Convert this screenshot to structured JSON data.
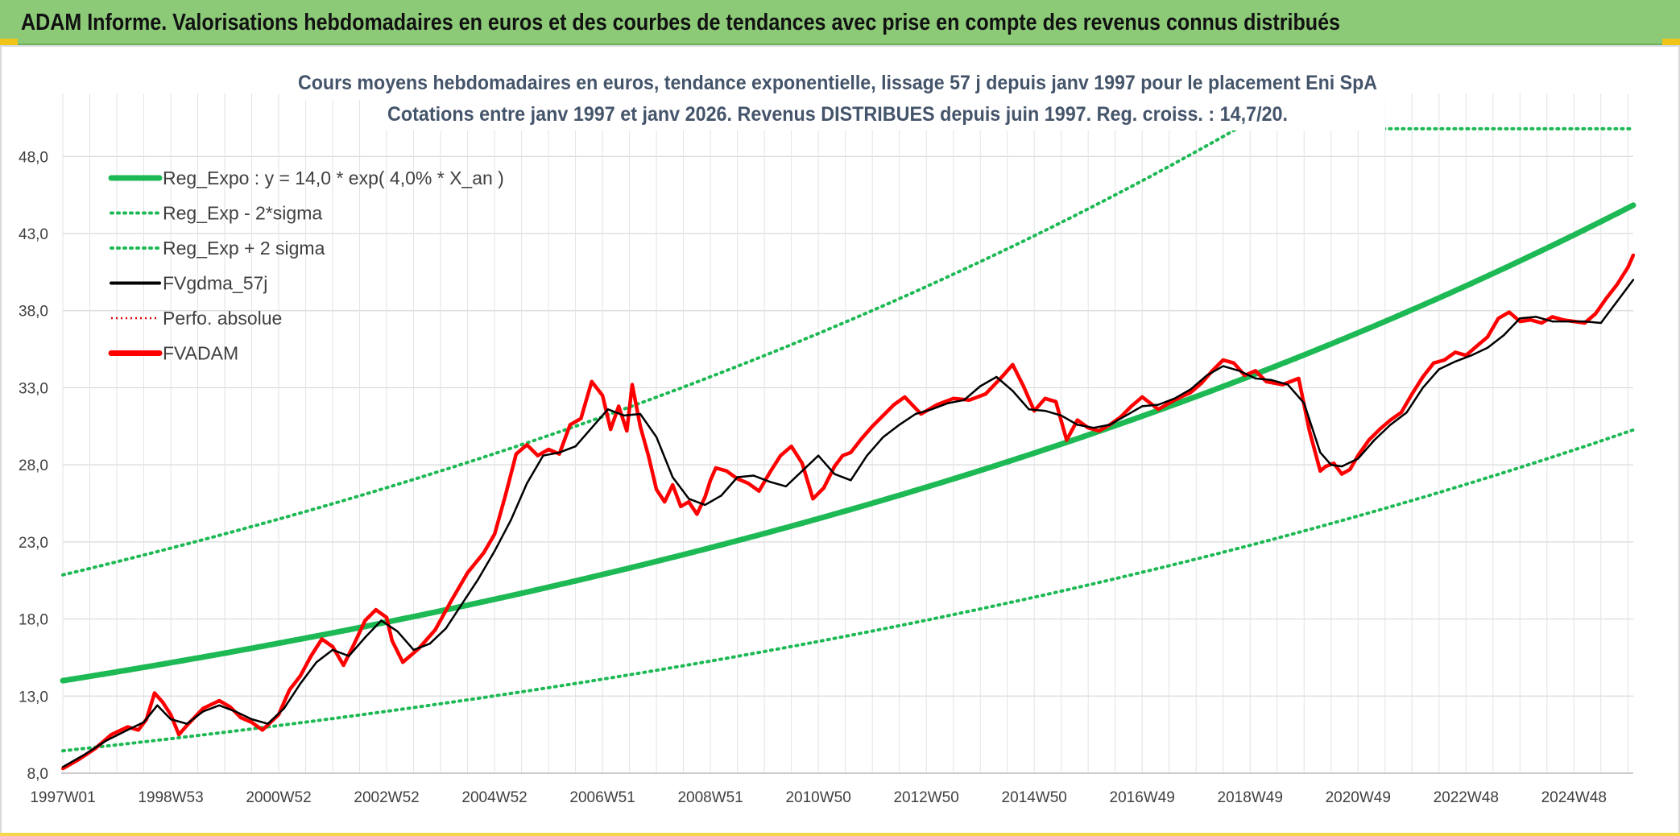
{
  "header": {
    "title": "ADAM Informe. Valorisations hebdomadaires en euros et des courbes de tendances avec prise en compte des revenus connus distribués"
  },
  "colors": {
    "header_bg": "#8cca78",
    "reg_expo": "#1db954",
    "sigma_bands": "#1db954",
    "fvgdma": "#000000",
    "perfo": "#e00000",
    "fvadam": "#ff0000"
  },
  "chart_data": {
    "type": "line",
    "title_line1": "Cours moyens hebdomadaires en euros, tendance exponentielle, lissage 57 j depuis janv 1997 pour le placement Eni SpA",
    "title_line2": "Cotations entre janv 1997 et janv 2026. Revenus DISTRIBUES depuis juin 1997. Reg. croiss. : 14,7/20.",
    "ylim": [
      8.0,
      50.0
    ],
    "y_ticks": [
      "8,0",
      "13,0",
      "18,0",
      "23,0",
      "28,0",
      "33,0",
      "38,0",
      "43,0",
      "48,0"
    ],
    "y_tick_values": [
      8,
      13,
      18,
      23,
      28,
      33,
      38,
      43,
      48
    ],
    "x_range_years": [
      1997.0,
      2026.1
    ],
    "x_ticks": [
      {
        "label": "1997W01",
        "t": 1997.0
      },
      {
        "label": "1998W53",
        "t": 1999.0
      },
      {
        "label": "2000W52",
        "t": 2001.0
      },
      {
        "label": "2002W52",
        "t": 2003.0
      },
      {
        "label": "2004W52",
        "t": 2005.0
      },
      {
        "label": "2006W51",
        "t": 2007.0
      },
      {
        "label": "2008W51",
        "t": 2009.0
      },
      {
        "label": "2010W50",
        "t": 2011.0
      },
      {
        "label": "2012W50",
        "t": 2013.0
      },
      {
        "label": "2014W50",
        "t": 2015.0
      },
      {
        "label": "2016W49",
        "t": 2017.0
      },
      {
        "label": "2018W49",
        "t": 2019.0
      },
      {
        "label": "2020W49",
        "t": 2021.0
      },
      {
        "label": "2022W48",
        "t": 2023.0
      },
      {
        "label": "2024W48",
        "t": 2025.0
      }
    ],
    "legend": [
      {
        "key": "reg_expo",
        "label": "Reg_Expo : y = 14,0 * exp( 4,0% *  X_an )",
        "style": "solid-thick",
        "color": "#1db954"
      },
      {
        "key": "reg_minus",
        "label": "Reg_Exp - 2*sigma",
        "style": "dotted",
        "color": "#1db954"
      },
      {
        "key": "reg_plus",
        "label": "Reg_Exp + 2 sigma",
        "style": "dotted",
        "color": "#1db954"
      },
      {
        "key": "fvgdma",
        "label": "FVgdma_57j",
        "style": "solid",
        "color": "#000000"
      },
      {
        "key": "perfo",
        "label": "Perfo. absolue",
        "style": "dotted-thin",
        "color": "#e00000"
      },
      {
        "key": "fvadam",
        "label": "FVADAM",
        "style": "solid-thick",
        "color": "#ff0000"
      }
    ],
    "regression": {
      "a": 14.0,
      "b": 0.04,
      "minus_factor": 0.675,
      "plus_factor": 1.49
    },
    "series": [
      {
        "name": "FVADAM",
        "t": [
          1997.0,
          1997.3,
          1997.6,
          1997.9,
          1998.2,
          1998.4,
          1998.55,
          1998.7,
          1998.85,
          1999.0,
          1999.15,
          1999.3,
          1999.6,
          1999.9,
          2000.1,
          2000.3,
          2000.5,
          2000.7,
          2001.0,
          2001.2,
          2001.4,
          2001.6,
          2001.8,
          2002.0,
          2002.2,
          2002.4,
          2002.6,
          2002.8,
          2003.0,
          2003.1,
          2003.3,
          2003.6,
          2003.9,
          2004.2,
          2004.5,
          2004.8,
          2005.0,
          2005.2,
          2005.4,
          2005.6,
          2005.8,
          2006.0,
          2006.2,
          2006.4,
          2006.6,
          2006.8,
          2007.0,
          2007.15,
          2007.3,
          2007.45,
          2007.55,
          2007.7,
          2007.85,
          2008.0,
          2008.15,
          2008.3,
          2008.45,
          2008.6,
          2008.75,
          2008.9,
          2009.0,
          2009.1,
          2009.3,
          2009.5,
          2009.7,
          2009.9,
          2010.1,
          2010.3,
          2010.5,
          2010.7,
          2010.9,
          2011.1,
          2011.3,
          2011.45,
          2011.6,
          2011.8,
          2012.0,
          2012.2,
          2012.4,
          2012.6,
          2012.9,
          2013.2,
          2013.5,
          2013.8,
          2014.1,
          2014.4,
          2014.6,
          2014.8,
          2015.0,
          2015.2,
          2015.4,
          2015.6,
          2015.8,
          2016.0,
          2016.2,
          2016.4,
          2016.6,
          2016.8,
          2017.0,
          2017.3,
          2017.6,
          2017.9,
          2018.1,
          2018.3,
          2018.5,
          2018.7,
          2018.9,
          2019.1,
          2019.3,
          2019.6,
          2019.9,
          2020.1,
          2020.3,
          2020.4,
          2020.55,
          2020.7,
          2020.85,
          2021.0,
          2021.2,
          2021.4,
          2021.6,
          2021.8,
          2022.0,
          2022.2,
          2022.4,
          2022.6,
          2022.8,
          2023.0,
          2023.2,
          2023.4,
          2023.6,
          2023.8,
          2024.0,
          2024.2,
          2024.4,
          2024.6,
          2024.8,
          2025.0,
          2025.2,
          2025.4,
          2025.6,
          2025.8,
          2026.0,
          2026.1
        ],
        "values": [
          8.3,
          8.9,
          9.6,
          10.5,
          11.0,
          10.8,
          11.5,
          13.2,
          12.6,
          11.8,
          10.5,
          11.1,
          12.2,
          12.7,
          12.3,
          11.6,
          11.3,
          10.8,
          11.8,
          13.4,
          14.3,
          15.6,
          16.7,
          16.2,
          15.0,
          16.4,
          17.9,
          18.6,
          18.1,
          16.6,
          15.2,
          16.1,
          17.3,
          19.2,
          21.0,
          22.3,
          23.5,
          26.0,
          28.7,
          29.3,
          28.6,
          29.0,
          28.7,
          30.6,
          31.0,
          33.4,
          32.5,
          30.3,
          31.8,
          30.2,
          33.2,
          30.5,
          28.6,
          26.4,
          25.6,
          26.7,
          25.3,
          25.6,
          24.8,
          25.9,
          27.0,
          27.8,
          27.6,
          27.1,
          26.8,
          26.3,
          27.5,
          28.6,
          29.2,
          28.1,
          25.8,
          26.5,
          27.9,
          28.6,
          28.8,
          29.7,
          30.5,
          31.2,
          31.9,
          32.4,
          31.3,
          31.9,
          32.3,
          32.2,
          32.6,
          33.7,
          34.5,
          33.1,
          31.5,
          32.3,
          32.1,
          29.6,
          30.9,
          30.4,
          30.2,
          30.6,
          31.1,
          31.8,
          32.4,
          31.6,
          32.2,
          32.7,
          33.3,
          34.1,
          34.8,
          34.6,
          33.8,
          34.1,
          33.4,
          33.2,
          33.6,
          30.2,
          27.6,
          27.9,
          28.1,
          27.4,
          27.7,
          28.6,
          29.6,
          30.3,
          30.9,
          31.4,
          32.6,
          33.7,
          34.6,
          34.8,
          35.3,
          35.1,
          35.7,
          36.3,
          37.5,
          37.9,
          37.3,
          37.4,
          37.2,
          37.6,
          37.4,
          37.3,
          37.2,
          37.8,
          38.8,
          39.7,
          40.8,
          41.6
        ]
      },
      {
        "name": "FVgdma_57j",
        "t": [
          1997.0,
          1997.4,
          1997.8,
          1998.2,
          1998.5,
          1998.75,
          1999.0,
          1999.3,
          1999.6,
          1999.9,
          2000.2,
          2000.5,
          2000.8,
          2001.1,
          2001.4,
          2001.7,
          2002.0,
          2002.3,
          2002.6,
          2002.9,
          2003.2,
          2003.5,
          2003.8,
          2004.1,
          2004.4,
          2004.7,
          2005.0,
          2005.3,
          2005.6,
          2005.9,
          2006.2,
          2006.5,
          2006.8,
          2007.1,
          2007.4,
          2007.7,
          2008.0,
          2008.3,
          2008.6,
          2008.9,
          2009.2,
          2009.5,
          2009.8,
          2010.1,
          2010.4,
          2010.7,
          2011.0,
          2011.3,
          2011.6,
          2011.9,
          2012.2,
          2012.5,
          2012.8,
          2013.1,
          2013.4,
          2013.7,
          2014.0,
          2014.3,
          2014.6,
          2014.9,
          2015.2,
          2015.5,
          2015.8,
          2016.1,
          2016.4,
          2016.7,
          2017.0,
          2017.3,
          2017.6,
          2017.9,
          2018.2,
          2018.5,
          2018.8,
          2019.1,
          2019.4,
          2019.7,
          2020.0,
          2020.3,
          2020.5,
          2020.7,
          2021.0,
          2021.3,
          2021.6,
          2021.9,
          2022.2,
          2022.5,
          2022.8,
          2023.1,
          2023.4,
          2023.7,
          2024.0,
          2024.3,
          2024.6,
          2024.9,
          2025.2,
          2025.5,
          2025.8,
          2026.1
        ],
        "values": [
          8.4,
          9.2,
          10.1,
          10.8,
          11.3,
          12.4,
          11.5,
          11.2,
          12.0,
          12.4,
          12.0,
          11.5,
          11.2,
          12.2,
          13.8,
          15.2,
          16.0,
          15.6,
          16.8,
          17.9,
          17.2,
          16.0,
          16.4,
          17.4,
          19.0,
          20.6,
          22.4,
          24.4,
          26.8,
          28.6,
          28.8,
          29.2,
          30.4,
          31.6,
          31.2,
          31.3,
          29.8,
          27.2,
          25.8,
          25.4,
          26.0,
          27.2,
          27.3,
          26.9,
          26.6,
          27.6,
          28.6,
          27.4,
          27.0,
          28.6,
          29.8,
          30.6,
          31.3,
          31.6,
          32.0,
          32.2,
          33.1,
          33.7,
          32.8,
          31.6,
          31.5,
          31.2,
          30.6,
          30.4,
          30.6,
          31.2,
          31.8,
          31.9,
          32.3,
          32.9,
          33.8,
          34.4,
          34.1,
          33.6,
          33.5,
          33.2,
          32.0,
          28.8,
          28.0,
          27.9,
          28.4,
          29.6,
          30.6,
          31.4,
          33.0,
          34.2,
          34.7,
          35.1,
          35.6,
          36.4,
          37.5,
          37.6,
          37.3,
          37.3,
          37.3,
          37.2,
          38.6,
          40.0
        ]
      }
    ]
  }
}
